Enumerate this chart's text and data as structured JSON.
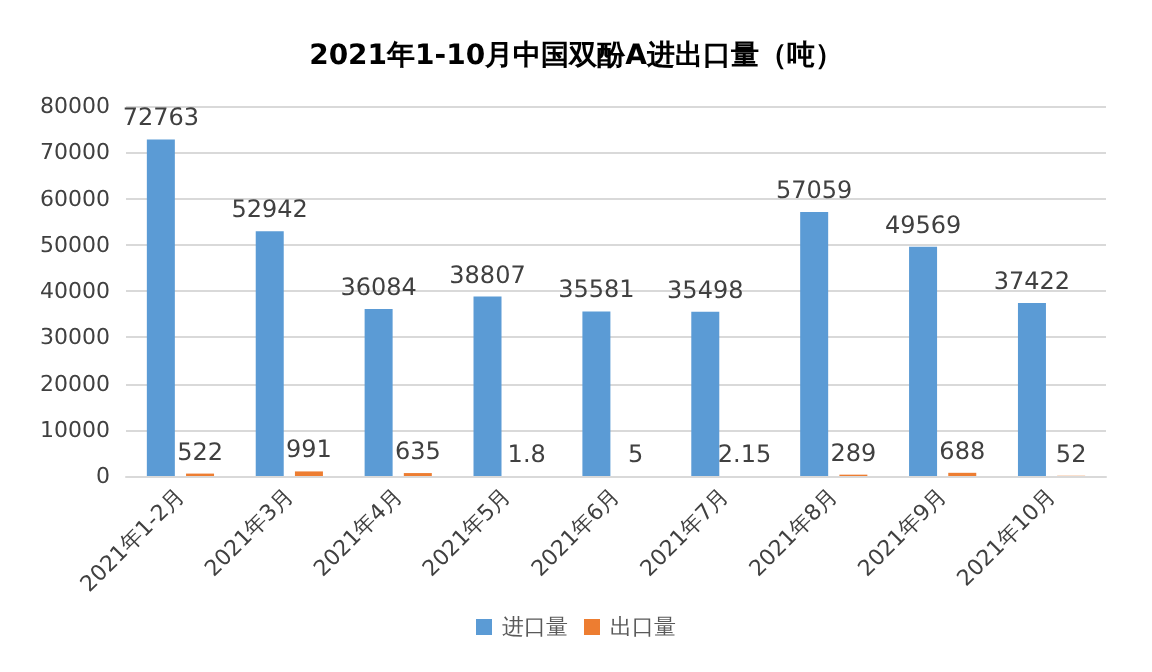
{
  "chart_data": {
    "type": "bar",
    "title": "2021年1-10月中国双酚A进出口量（吨）",
    "categories": [
      "2021年1-2月",
      "2021年3月",
      "2021年4月",
      "2021年5月",
      "2021年6月",
      "2021年7月",
      "2021年8月",
      "2021年9月",
      "2021年10月"
    ],
    "series": [
      {
        "name": "进口量",
        "color": "#5b9bd5",
        "values": [
          72763,
          52942,
          36084,
          38807,
          35581,
          35498,
          57059,
          49569,
          37422
        ]
      },
      {
        "name": "出口量",
        "color": "#ed7d31",
        "values": [
          522,
          991,
          635,
          1.8,
          5,
          2.15,
          289,
          688,
          52
        ]
      }
    ],
    "ylim": [
      0,
      80000
    ],
    "yticks": [
      0,
      10000,
      20000,
      30000,
      40000,
      50000,
      60000,
      70000,
      80000
    ],
    "grid": "y",
    "legend": "bottom",
    "data_labels": true
  }
}
